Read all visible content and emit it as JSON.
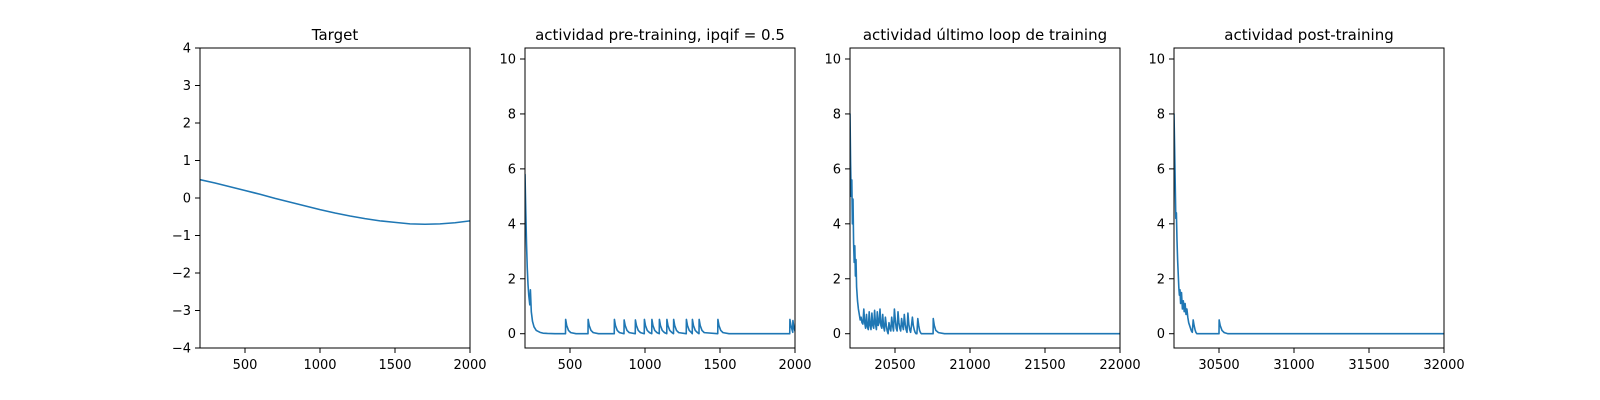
{
  "colors": {
    "series": "#1f77b4",
    "axes": "#000000",
    "background": "#ffffff"
  },
  "chart_data": [
    {
      "type": "line",
      "title": "Target",
      "xlabel": "",
      "ylabel": "",
      "xlim": [
        200,
        2000
      ],
      "ylim": [
        -4,
        4
      ],
      "xticks": [
        500,
        1000,
        1500,
        2000
      ],
      "yticks": [
        -4,
        -3,
        -2,
        -1,
        0,
        1,
        2,
        3,
        4
      ],
      "grid": false,
      "series": [
        {
          "x": [
            200,
            300,
            400,
            500,
            600,
            700,
            800,
            900,
            1000,
            1100,
            1200,
            1300,
            1400,
            1500,
            1600,
            1700,
            1800,
            1900,
            2000
          ],
          "values": [
            0.49,
            0.4,
            0.3,
            0.2,
            0.1,
            -0.01,
            -0.11,
            -0.21,
            -0.31,
            -0.4,
            -0.48,
            -0.55,
            -0.61,
            -0.65,
            -0.69,
            -0.7,
            -0.69,
            -0.66,
            -0.61
          ]
        }
      ]
    },
    {
      "type": "line",
      "title": "actividad pre-training, ipqif = 0.5",
      "xlabel": "",
      "ylabel": "",
      "xlim": [
        200,
        2000
      ],
      "ylim": [
        -0.52,
        10.4
      ],
      "xticks": [
        500,
        1000,
        1500,
        2000
      ],
      "yticks": [
        0,
        2,
        4,
        6,
        8,
        10
      ],
      "grid": false,
      "series": [
        {
          "x": [
            200,
            205,
            210,
            215,
            220,
            225,
            232,
            236,
            242,
            250,
            260,
            275,
            300,
            320,
            350,
            400,
            470,
            471,
            478,
            490,
            505,
            540,
            620,
            621,
            628,
            640,
            655,
            690,
            795,
            796,
            803,
            815,
            830,
            860,
            861,
            868,
            880,
            895,
            935,
            936,
            943,
            955,
            970,
            995,
            996,
            1003,
            1015,
            1030,
            1045,
            1046,
            1053,
            1065,
            1080,
            1095,
            1096,
            1103,
            1115,
            1130,
            1145,
            1146,
            1153,
            1165,
            1180,
            1190,
            1191,
            1198,
            1210,
            1225,
            1275,
            1276,
            1283,
            1295,
            1310,
            1315,
            1316,
            1323,
            1335,
            1350,
            1360,
            1361,
            1368,
            1380,
            1395,
            1485,
            1486,
            1493,
            1505,
            1520,
            1560,
            1965,
            1966,
            1973,
            1980,
            1985,
            1986,
            1992,
            2000
          ],
          "values": [
            5.8,
            4.5,
            3.3,
            2.4,
            1.8,
            1.4,
            1.05,
            1.6,
            0.8,
            0.45,
            0.25,
            0.12,
            0.05,
            0.02,
            0.01,
            0.0,
            0.0,
            0.52,
            0.3,
            0.12,
            0.04,
            0.0,
            0.0,
            0.52,
            0.3,
            0.12,
            0.04,
            0.0,
            0.0,
            0.52,
            0.3,
            0.12,
            0.04,
            0.0,
            0.5,
            0.3,
            0.12,
            0.04,
            0.0,
            0.5,
            0.3,
            0.12,
            0.04,
            0.0,
            0.52,
            0.3,
            0.12,
            0.04,
            0.0,
            0.52,
            0.3,
            0.12,
            0.04,
            0.0,
            0.52,
            0.3,
            0.12,
            0.04,
            0.0,
            0.52,
            0.3,
            0.12,
            0.04,
            0.0,
            0.52,
            0.3,
            0.12,
            0.04,
            0.0,
            0.52,
            0.3,
            0.12,
            0.04,
            0.0,
            0.52,
            0.3,
            0.12,
            0.04,
            0.0,
            0.52,
            0.3,
            0.12,
            0.04,
            0.0,
            0.52,
            0.3,
            0.12,
            0.04,
            0.0,
            0.0,
            0.52,
            0.3,
            0.15,
            0.05,
            0.48,
            0.25,
            0.1
          ]
        }
      ]
    },
    {
      "type": "line",
      "title": "actividad último loop de training",
      "xlabel": "",
      "ylabel": "",
      "xlim": [
        20200,
        22000
      ],
      "ylim": [
        -0.52,
        10.4
      ],
      "xticks": [
        20500,
        21000,
        21500,
        22000
      ],
      "yticks": [
        0,
        2,
        4,
        6,
        8,
        10
      ],
      "grid": false,
      "series": [
        {
          "x": [
            20200,
            20204,
            20208,
            20212,
            20216,
            20220,
            20224,
            20228,
            20232,
            20236,
            20240,
            20244,
            20250,
            20256,
            20262,
            20268,
            20274,
            20280,
            20286,
            20292,
            20298,
            20304,
            20310,
            20316,
            20322,
            20328,
            20334,
            20340,
            20346,
            20352,
            20358,
            20364,
            20370,
            20376,
            20382,
            20388,
            20394,
            20400,
            20406,
            20412,
            20418,
            20424,
            20430,
            20436,
            20442,
            20448,
            20454,
            20460,
            20466,
            20472,
            20478,
            20484,
            20490,
            20496,
            20502,
            20508,
            20514,
            20520,
            20526,
            20532,
            20538,
            20544,
            20550,
            20556,
            20562,
            20568,
            20574,
            20580,
            20586,
            20592,
            20598,
            20604,
            20610,
            20616,
            20622,
            20628,
            20634,
            20640,
            20646,
            20652,
            20658,
            20664,
            20670,
            20676,
            20682,
            20688,
            20694,
            20700,
            20706,
            20712,
            20718,
            20724,
            20730,
            20736,
            20742,
            20748,
            20754,
            20755,
            20762,
            20772,
            20790,
            20830,
            22000
          ],
          "values": [
            8.0,
            6.2,
            5.0,
            5.6,
            4.0,
            4.9,
            3.3,
            2.6,
            3.2,
            2.1,
            2.7,
            1.7,
            1.2,
            0.9,
            0.7,
            0.5,
            0.6,
            0.4,
            0.35,
            0.9,
            0.4,
            0.2,
            0.7,
            0.25,
            0.15,
            0.8,
            0.3,
            0.15,
            0.75,
            0.3,
            0.2,
            0.85,
            0.35,
            0.15,
            0.8,
            0.3,
            0.4,
            0.9,
            0.3,
            0.2,
            0.7,
            0.25,
            0.1,
            0.6,
            0.3,
            0.1,
            0.0,
            0.4,
            0.2,
            0.1,
            0.6,
            0.3,
            0.1,
            0.9,
            0.5,
            0.2,
            0.1,
            0.8,
            0.4,
            0.2,
            0.1,
            0.55,
            0.3,
            0.15,
            0.7,
            0.35,
            0.15,
            0.05,
            0.75,
            0.35,
            0.15,
            0.05,
            0.3,
            0.6,
            0.3,
            0.15,
            0.05,
            0.0,
            0.0,
            0.55,
            0.3,
            0.12,
            0.04,
            0.0,
            0.0,
            0.0,
            0.0,
            0.0,
            0.0,
            0.0,
            0.0,
            0.0,
            0.0,
            0.0,
            0.0,
            0.0,
            0.0,
            0.55,
            0.3,
            0.12,
            0.04,
            0.0,
            0.0
          ]
        }
      ]
    },
    {
      "type": "line",
      "title": "actividad post-training",
      "xlabel": "",
      "ylabel": "",
      "xlim": [
        30200,
        32000
      ],
      "ylim": [
        -0.52,
        10.4
      ],
      "xticks": [
        30500,
        31000,
        31500,
        32000
      ],
      "yticks": [
        0,
        2,
        4,
        6,
        8,
        10
      ],
      "grid": false,
      "series": [
        {
          "x": [
            30200,
            30204,
            30208,
            30212,
            30216,
            30220,
            30224,
            30228,
            30232,
            30236,
            30240,
            30244,
            30250,
            30256,
            30262,
            30268,
            30274,
            30280,
            30286,
            30292,
            30298,
            30304,
            30310,
            30316,
            30322,
            30328,
            30334,
            30340,
            30346,
            30352,
            30358,
            30364,
            30370,
            30376,
            30382,
            30388,
            30394,
            30400,
            30410,
            30420,
            30430,
            30440,
            30450,
            30460,
            30480,
            30500,
            30501,
            30508,
            30520,
            30535,
            30560,
            32000
          ],
          "values": [
            8.0,
            6.8,
            5.5,
            4.2,
            4.4,
            3.4,
            2.7,
            2.2,
            1.7,
            1.4,
            1.6,
            1.1,
            1.5,
            0.9,
            1.2,
            0.8,
            1.1,
            0.7,
            0.9,
            0.6,
            0.4,
            0.3,
            0.2,
            0.1,
            0.05,
            0.5,
            0.3,
            0.15,
            0.05,
            0.0,
            0.0,
            0.0,
            0.0,
            0.0,
            0.0,
            0.0,
            0.0,
            0.0,
            0.0,
            0.0,
            0.0,
            0.0,
            0.0,
            0.0,
            0.0,
            0.0,
            0.5,
            0.3,
            0.12,
            0.04,
            0.0,
            0.0
          ]
        }
      ]
    }
  ]
}
